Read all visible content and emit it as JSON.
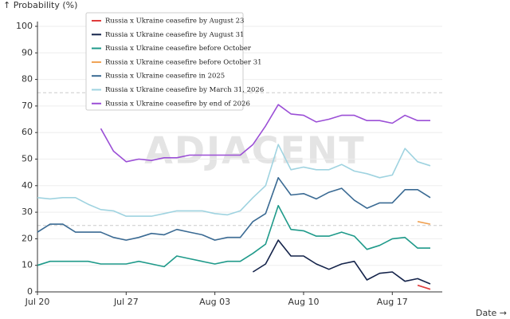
{
  "chart_data": {
    "type": "line",
    "y_label": "↑ Probability (%)",
    "x_label": "Date →",
    "watermark": "ADJACENT",
    "categories": [
      "Jul 20",
      null,
      null,
      null,
      null,
      null,
      null,
      "Jul 27",
      null,
      null,
      null,
      null,
      null,
      null,
      "Aug 03",
      null,
      null,
      null,
      null,
      null,
      null,
      "Aug 10",
      null,
      null,
      null,
      null,
      null,
      null,
      "Aug 17",
      null,
      null,
      null
    ],
    "ylim": [
      0,
      100
    ],
    "yticks": [
      0,
      10,
      20,
      30,
      40,
      50,
      60,
      70,
      80,
      90,
      100
    ],
    "minor_gridlines": [
      25,
      75
    ],
    "grid": true,
    "legend": "top-left",
    "series": [
      {
        "name": "Russia x Ukraine ceasefire by August 23",
        "color": "#e03b3b",
        "values": [
          null,
          null,
          null,
          null,
          null,
          null,
          null,
          null,
          null,
          null,
          null,
          null,
          null,
          null,
          null,
          null,
          null,
          null,
          null,
          null,
          null,
          null,
          null,
          null,
          null,
          null,
          null,
          null,
          null,
          null,
          2.5,
          1
        ]
      },
      {
        "name": "Russia x Ukraine ceasefire by August 31",
        "color": "#14234a",
        "values": [
          null,
          null,
          null,
          null,
          null,
          null,
          null,
          null,
          null,
          null,
          null,
          null,
          null,
          null,
          null,
          null,
          null,
          7.5,
          10.5,
          19.5,
          13.5,
          13.5,
          10.5,
          8.5,
          10.5,
          11.5,
          4.5,
          7,
          7.5,
          4,
          5,
          3
        ]
      },
      {
        "name": "Russia x Ukraine ceasefire before October",
        "color": "#1f9a8a",
        "values": [
          10,
          11.5,
          11.5,
          11.5,
          11.5,
          10.5,
          10.5,
          10.5,
          11.5,
          10.5,
          9.5,
          13.5,
          12.5,
          11.5,
          10.5,
          11.5,
          11.5,
          14.5,
          18,
          32.5,
          23.5,
          23,
          21,
          21,
          22.5,
          21,
          16,
          17.5,
          20,
          20.5,
          16.5,
          16.5
        ]
      },
      {
        "name": "Russia x Ukraine ceasefire before October 31",
        "color": "#f0a050",
        "values": [
          null,
          null,
          null,
          null,
          null,
          null,
          null,
          null,
          null,
          null,
          null,
          null,
          null,
          null,
          null,
          null,
          null,
          null,
          null,
          null,
          null,
          null,
          null,
          null,
          null,
          null,
          null,
          null,
          null,
          null,
          26.5,
          25.5
        ]
      },
      {
        "name": "Russia x Ukraine ceasefire in 2025",
        "color": "#3a6a93",
        "values": [
          22.5,
          25.5,
          25.5,
          22.5,
          22.5,
          22.5,
          20.5,
          19.5,
          20.5,
          22,
          21.5,
          23.5,
          22.5,
          21.5,
          19.5,
          20.5,
          20.5,
          26.5,
          29.5,
          43,
          36.5,
          37,
          35,
          37.5,
          39,
          34.5,
          31.5,
          33.5,
          33.5,
          38.5,
          38.5,
          35.5
        ]
      },
      {
        "name": "Russia x Ukraine ceasefire by March 31, 2026",
        "color": "#9fd3e0",
        "values": [
          35.5,
          35,
          35.5,
          35.5,
          33,
          31,
          30.5,
          28.5,
          28.5,
          28.5,
          29.5,
          30.5,
          30.5,
          30.5,
          29.5,
          29,
          30.5,
          35.5,
          40,
          55.5,
          46,
          47,
          46,
          46,
          48,
          45.5,
          44.5,
          43,
          44,
          54,
          49,
          47.5
        ]
      },
      {
        "name": "Russia x Ukraine ceasefire by end of 2026",
        "color": "#9b4fd6",
        "values": [
          null,
          null,
          null,
          null,
          null,
          61.5,
          53,
          49,
          50,
          49.5,
          50.5,
          50.5,
          51.5,
          51.5,
          51.5,
          51.5,
          51.5,
          55.5,
          62.5,
          70.5,
          67,
          66.5,
          64,
          65,
          66.5,
          66.5,
          64.5,
          64.5,
          63.5,
          66.5,
          64.5,
          64.5
        ]
      }
    ]
  }
}
